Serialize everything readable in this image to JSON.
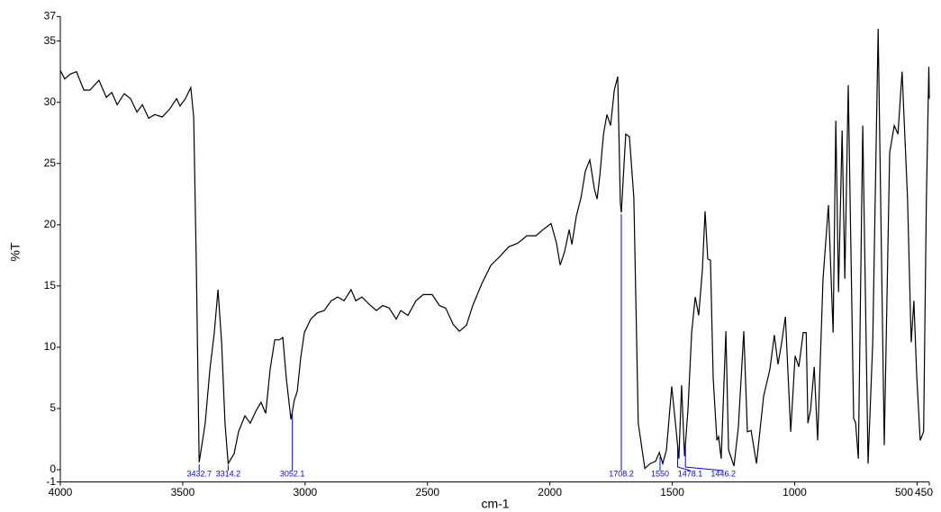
{
  "chart_data": {
    "type": "line",
    "xlabel": "cm-1",
    "ylabel": "%T",
    "color": "#000000",
    "annotation_color": "#0000ff",
    "xlim": [
      4000,
      450
    ],
    "ylim": [
      -1,
      37
    ],
    "xticks": [
      4000,
      3500,
      3000,
      2500,
      2000,
      1500,
      1000,
      500,
      450
    ],
    "yticks": [
      -1,
      0,
      5,
      10,
      15,
      20,
      25,
      30,
      35,
      37
    ],
    "peak_labels": [
      3432.7,
      3314.2,
      3052.1,
      1708.2,
      1550,
      1478.1,
      1446.2
    ],
    "x": [
      4000,
      3982,
      3960,
      3934,
      3904,
      3879,
      3842,
      3812,
      3790,
      3768,
      3739,
      3713,
      3687,
      3665,
      3639,
      3614,
      3584,
      3555,
      3525,
      3511,
      3489,
      3467,
      3455,
      3444,
      3432.7,
      3408,
      3389,
      3371,
      3356,
      3341,
      3327,
      3314.2,
      3290,
      3272,
      3246,
      3224,
      3198,
      3180,
      3161,
      3143,
      3124,
      3106,
      3091,
      3077,
      3058,
      3044,
      3032,
      3018,
      3003,
      2977,
      2951,
      2922,
      2893,
      2867,
      2841,
      2812,
      2793,
      2768,
      2738,
      2709,
      2683,
      2657,
      2628,
      2609,
      2580,
      2547,
      2517,
      2481,
      2451,
      2426,
      2396,
      2370,
      2341,
      2315,
      2278,
      2241,
      2205,
      2168,
      2131,
      2094,
      2057,
      2028,
      1995,
      1973,
      1958,
      1940,
      1921,
      1910,
      1892,
      1873,
      1855,
      1837,
      1818,
      1807,
      1796,
      1781,
      1767,
      1752,
      1737,
      1723,
      1712,
      1708.2,
      1690,
      1675,
      1657,
      1639,
      1612,
      1590,
      1568,
      1553,
      1539,
      1524,
      1502,
      1487,
      1473,
      1462,
      1450,
      1436,
      1421,
      1406,
      1392,
      1377,
      1366,
      1355,
      1344,
      1333,
      1318,
      1311,
      1300,
      1281,
      1270,
      1248,
      1230,
      1208,
      1193,
      1178,
      1156,
      1127,
      1101,
      1083,
      1068,
      1053,
      1038,
      1016,
      998,
      983,
      965,
      953,
      946,
      935,
      920,
      906,
      884,
      862,
      843,
      832,
      821,
      806,
      795,
      781,
      759,
      751,
      740,
      722,
      700,
      681,
      659,
      634,
      612,
      593,
      578,
      561,
      539,
      524,
      513,
      502,
      487,
      473,
      462,
      452,
      450
    ],
    "values": [
      32.6,
      31.9,
      32.3,
      32.5,
      31,
      31,
      31.8,
      30.4,
      30.8,
      29.8,
      30.7,
      30.3,
      29.2,
      29.8,
      28.7,
      29,
      28.8,
      29.4,
      30.3,
      29.7,
      30.3,
      31.2,
      28.8,
      16.3,
      0.6,
      3.8,
      8.2,
      11.2,
      14.7,
      10.4,
      3.8,
      0.5,
      1.3,
      3.1,
      4.4,
      3.8,
      4.9,
      5.5,
      4.6,
      8.2,
      10.6,
      10.6,
      10.8,
      7.5,
      4.1,
      5.7,
      6.4,
      9.1,
      11.2,
      12.3,
      12.8,
      13,
      13.8,
      14.1,
      13.8,
      14.7,
      13.8,
      14.1,
      13.5,
      13,
      13.4,
      13.2,
      12.3,
      13,
      12.6,
      13.8,
      14.3,
      14.3,
      13.4,
      13.2,
      11.9,
      11.3,
      11.8,
      13.4,
      15.2,
      16.7,
      17.4,
      18.2,
      18.5,
      19.1,
      19.1,
      19.6,
      20.1,
      18.5,
      16.7,
      17.8,
      19.6,
      18.4,
      20.7,
      22.2,
      24.4,
      25.3,
      22.9,
      22.1,
      24,
      27.4,
      29,
      28.1,
      31,
      32.1,
      21.8,
      21,
      27.4,
      27.2,
      22.2,
      3.8,
      0.1,
      0.5,
      0.7,
      1.4,
      0.5,
      1.6,
      6.8,
      3.8,
      0.9,
      6.9,
      1.1,
      4.9,
      11.2,
      14.1,
      12.6,
      16.3,
      21.1,
      17.2,
      17.1,
      7.5,
      2.4,
      2.7,
      0.9,
      11.3,
      1.6,
      0.3,
      3.5,
      11.3,
      3.1,
      3.2,
      0.5,
      6,
      8.2,
      11,
      8.6,
      10.4,
      12.5,
      3.1,
      9.3,
      8.4,
      11.2,
      11.2,
      3.8,
      4.9,
      8.4,
      2.4,
      15.6,
      21.6,
      11.2,
      28.5,
      14.5,
      27.7,
      15.6,
      31.4,
      4.2,
      3.8,
      0.9,
      28.1,
      0.5,
      10.4,
      36,
      2,
      25.9,
      28.1,
      27.4,
      32.5,
      22.2,
      10.4,
      13.8,
      7.9,
      2.4,
      3.1,
      21.8,
      32.9,
      30.3
    ]
  }
}
